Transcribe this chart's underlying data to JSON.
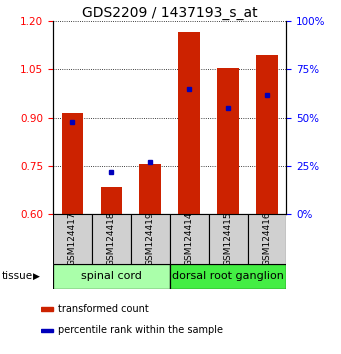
{
  "title": "GDS2209 / 1437193_s_at",
  "samples": [
    "GSM124417",
    "GSM124418",
    "GSM124419",
    "GSM124414",
    "GSM124415",
    "GSM124416"
  ],
  "transformed_counts": [
    0.915,
    0.685,
    0.755,
    1.165,
    1.055,
    1.095
  ],
  "percentile_ranks": [
    48,
    22,
    27,
    65,
    55,
    62
  ],
  "ylim_left": [
    0.6,
    1.2
  ],
  "ylim_right": [
    0,
    100
  ],
  "yticks_left": [
    0.6,
    0.75,
    0.9,
    1.05,
    1.2
  ],
  "yticks_right": [
    0,
    25,
    50,
    75,
    100
  ],
  "groups": [
    {
      "label": "spinal cord",
      "indices": [
        0,
        1,
        2
      ],
      "color": "#aaffaa"
    },
    {
      "label": "dorsal root ganglion",
      "indices": [
        3,
        4,
        5
      ],
      "color": "#44ee44"
    }
  ],
  "bar_color": "#cc2200",
  "dot_color": "#0000bb",
  "bar_width": 0.55,
  "background_color": "#ffffff",
  "tissue_label": "tissue",
  "legend_items": [
    {
      "label": "transformed count",
      "color": "#cc2200"
    },
    {
      "label": "percentile rank within the sample",
      "color": "#0000bb"
    }
  ],
  "title_fontsize": 10,
  "tick_fontsize": 7.5,
  "sample_fontsize": 6.5,
  "tissue_fontsize": 8,
  "legend_fontsize": 7
}
